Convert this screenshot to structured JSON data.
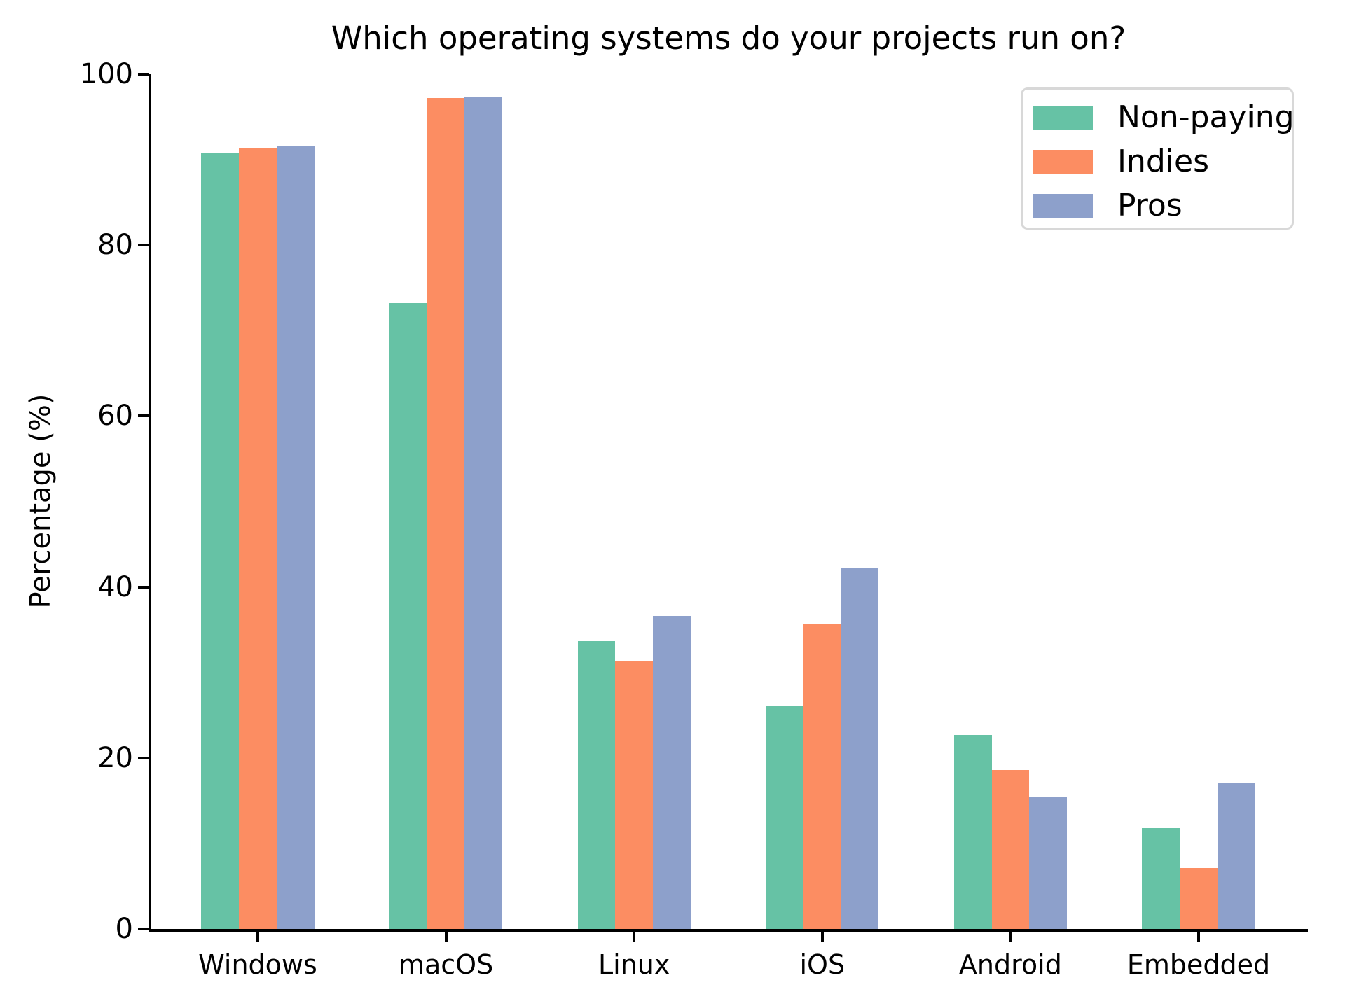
{
  "chart_data": {
    "type": "bar",
    "title": "Which operating systems do your projects run on?",
    "ylabel": "Percentage (%)",
    "xlabel": "",
    "ylim": [
      0,
      100
    ],
    "yticks": [
      0,
      20,
      40,
      60,
      80,
      100
    ],
    "categories": [
      "Windows",
      "macOS",
      "Linux",
      "iOS",
      "Android",
      "Embedded"
    ],
    "series": [
      {
        "name": "Non-paying",
        "color": "#66c2a5",
        "values": [
          90.8,
          73.2,
          33.7,
          26.1,
          22.7,
          11.8
        ]
      },
      {
        "name": "Indies",
        "color": "#fc8d62",
        "values": [
          91.4,
          97.2,
          31.4,
          35.7,
          18.6,
          7.1
        ]
      },
      {
        "name": "Pros",
        "color": "#8da0cb",
        "values": [
          91.6,
          97.3,
          36.6,
          42.3,
          15.5,
          17.0
        ]
      }
    ],
    "legend_position": "upper right",
    "grid": false,
    "axis_color": "#000000",
    "background": "#ffffff"
  }
}
